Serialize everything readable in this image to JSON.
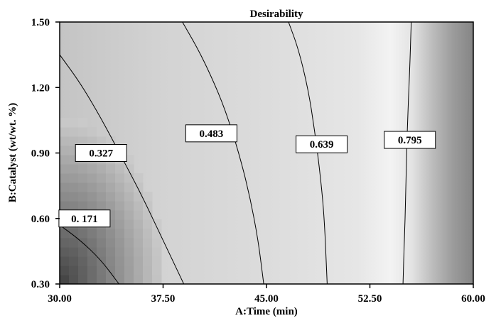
{
  "chart_data": {
    "type": "heatmap",
    "title": "Desirability",
    "xlabel": "A:Time (min)",
    "ylabel": "B:Catalyst  (wt/wt. %)",
    "xlim": [
      30,
      60
    ],
    "ylim": [
      0.3,
      1.5
    ],
    "x_ticks": [
      30,
      37.5,
      45,
      52.5,
      60
    ],
    "x_tick_labels": [
      "30.00",
      "37.50",
      "45.00",
      "52.50",
      "60.00"
    ],
    "y_ticks": [
      0.3,
      0.6,
      0.9,
      1.2,
      1.5
    ],
    "y_tick_labels": [
      "0.30",
      "0.60",
      "0.90",
      "1.20",
      "1.50"
    ],
    "grid": false,
    "colormap": "grayscale: dark = low desirability, light = high desirability",
    "contours": [
      {
        "level": 0.171,
        "label": "0. 171",
        "label_at": [
          31.8,
          0.6
        ],
        "points": [
          [
            30,
            0.57
          ],
          [
            31.5,
            0.5
          ],
          [
            33.0,
            0.41
          ],
          [
            34.3,
            0.3
          ]
        ]
      },
      {
        "level": 0.327,
        "label": "0.327",
        "label_at": [
          33.0,
          0.9
        ],
        "points": [
          [
            30,
            1.35
          ],
          [
            31.5,
            1.22
          ],
          [
            33.0,
            1.06
          ],
          [
            34.5,
            0.88
          ],
          [
            36.0,
            0.7
          ],
          [
            37.5,
            0.5
          ],
          [
            39.0,
            0.3
          ]
        ]
      },
      {
        "level": 0.483,
        "label": "0.483",
        "label_at": [
          41.0,
          0.99
        ],
        "points": [
          [
            38.9,
            1.5
          ],
          [
            40.0,
            1.38
          ],
          [
            41.0,
            1.25
          ],
          [
            42.0,
            1.1
          ],
          [
            43.0,
            0.9
          ],
          [
            43.8,
            0.7
          ],
          [
            44.4,
            0.5
          ],
          [
            44.8,
            0.3
          ]
        ]
      },
      {
        "level": 0.639,
        "label": "0.639",
        "label_at": [
          49.0,
          0.94
        ],
        "points": [
          [
            46.6,
            1.5
          ],
          [
            47.3,
            1.38
          ],
          [
            48.0,
            1.2
          ],
          [
            48.5,
            1.0
          ],
          [
            48.9,
            0.8
          ],
          [
            49.2,
            0.6
          ],
          [
            49.4,
            0.3
          ]
        ]
      },
      {
        "level": 0.795,
        "label": "0.795",
        "label_at": [
          55.4,
          0.96
        ],
        "points": [
          [
            55.5,
            1.5
          ],
          [
            55.4,
            1.3
          ],
          [
            55.2,
            1.0
          ],
          [
            55.1,
            0.7
          ],
          [
            55.0,
            0.5
          ],
          [
            54.9,
            0.3
          ]
        ]
      }
    ]
  }
}
